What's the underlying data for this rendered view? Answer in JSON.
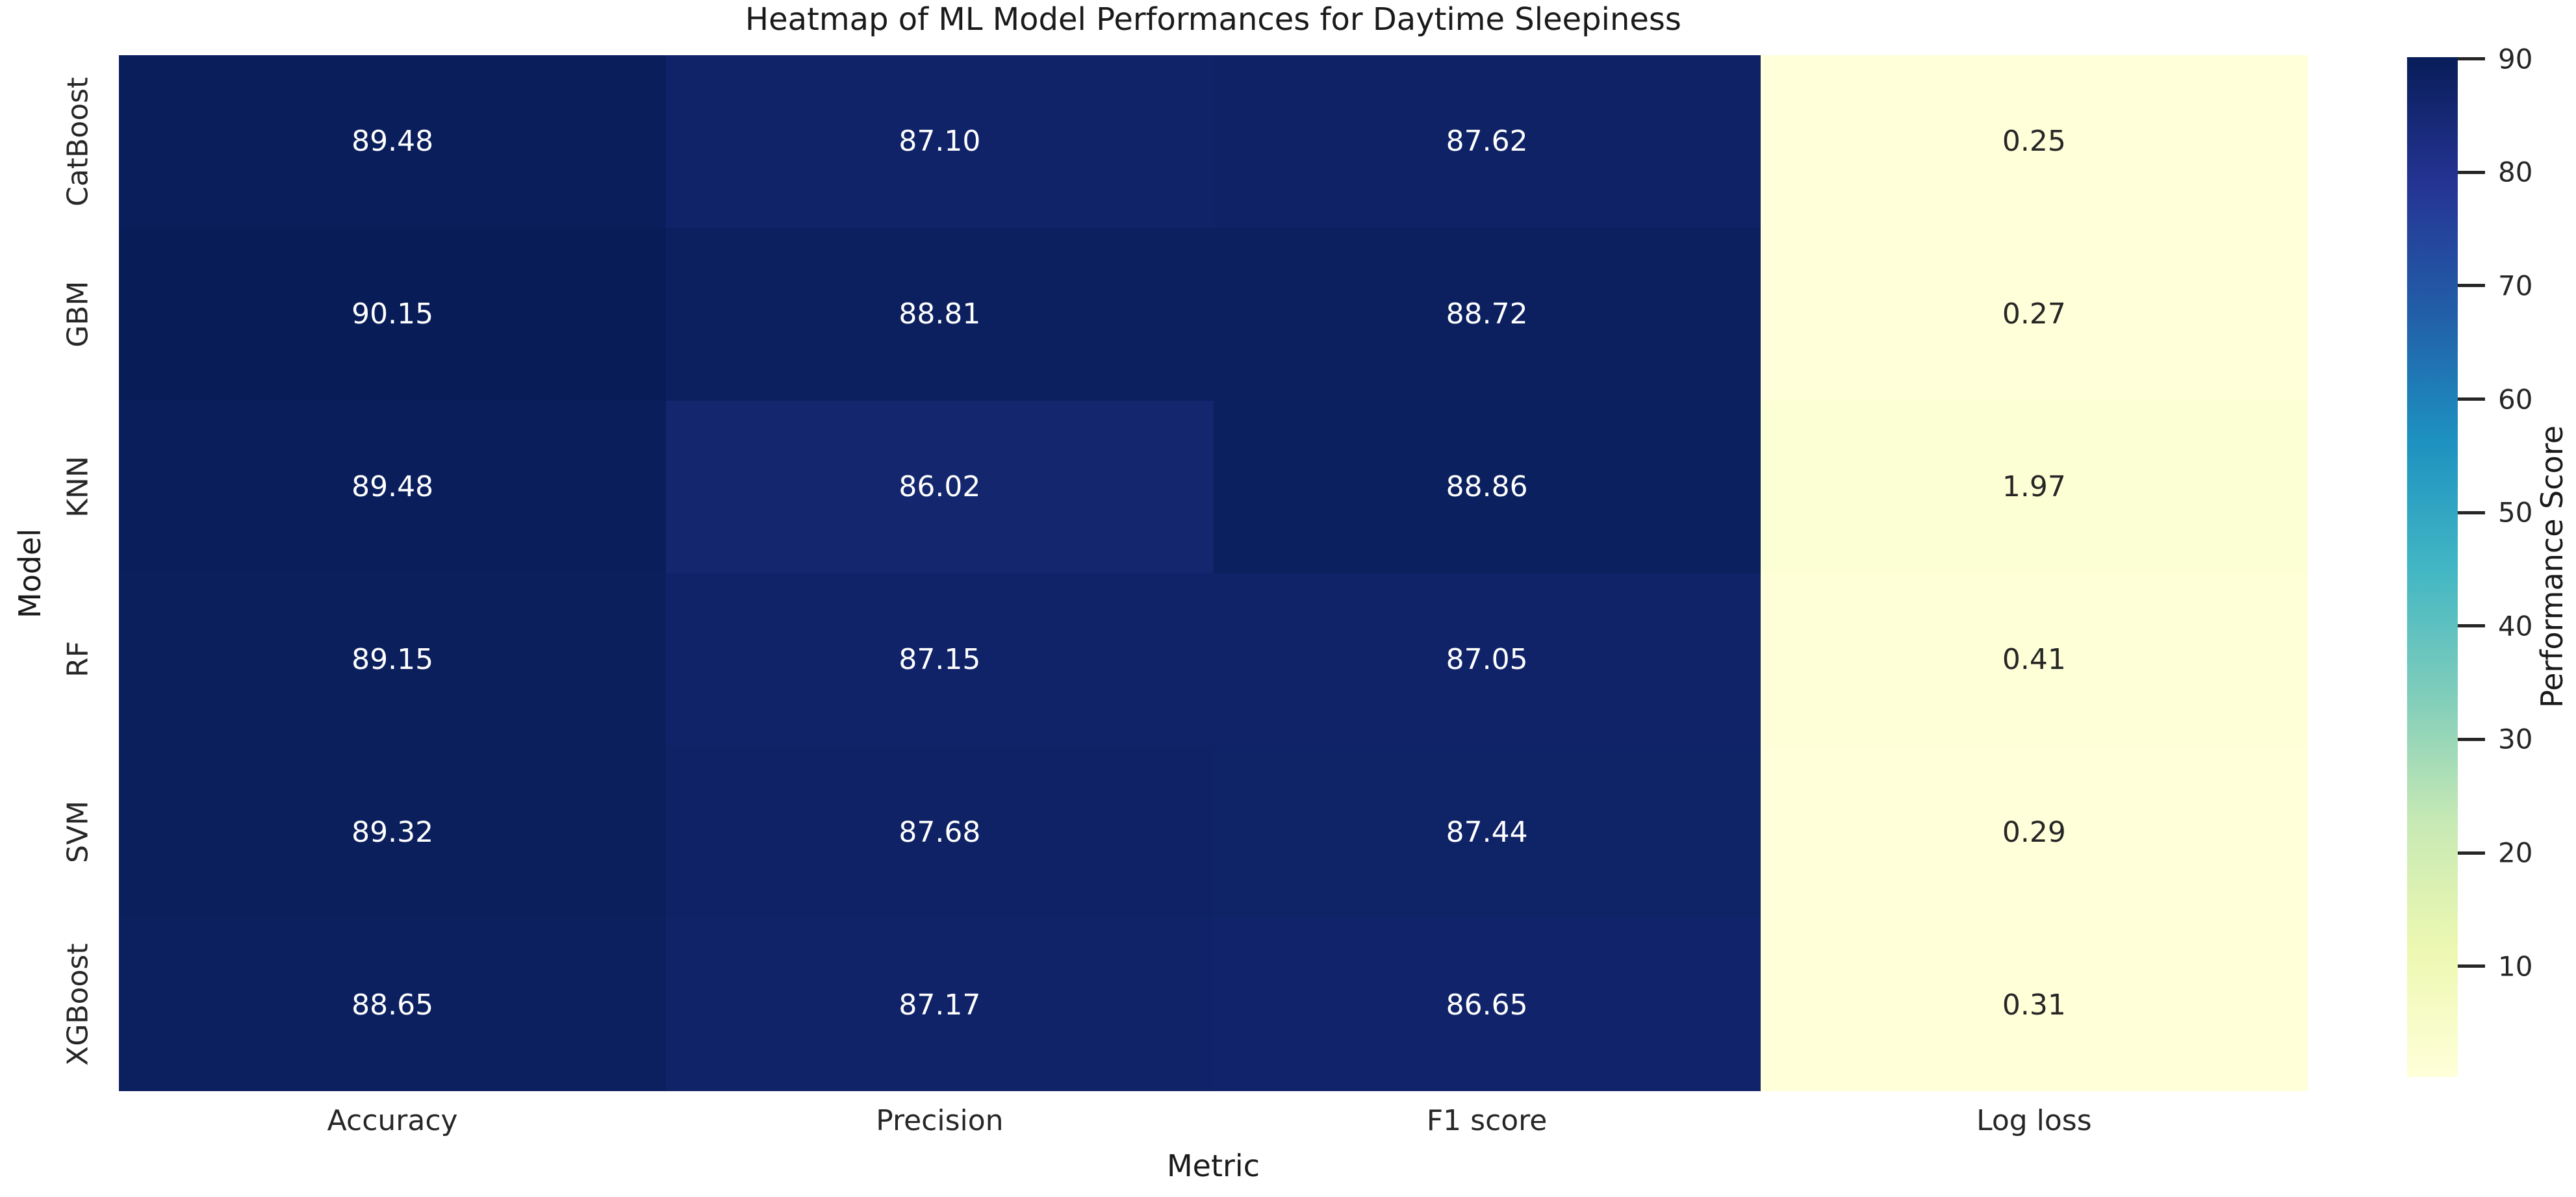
{
  "figure": {
    "background_color": "#ffffff",
    "text_color": "#1a1a1a"
  },
  "chart_data": {
    "type": "heatmap",
    "title": "Heatmap of ML Model Performances for Daytime Sleepiness",
    "xlabel": "Metric",
    "ylabel": "Model",
    "x_categories": [
      "Accuracy",
      "Precision",
      "F1 score",
      "Log loss"
    ],
    "y_categories": [
      "CatBoost",
      "GBM",
      "KNN",
      "RF",
      "SVM",
      "XGBoost"
    ],
    "values": [
      [
        89.48,
        87.1,
        87.62,
        0.25
      ],
      [
        90.15,
        88.81,
        88.72,
        0.27
      ],
      [
        89.48,
        86.02,
        88.86,
        1.97
      ],
      [
        89.15,
        87.15,
        87.05,
        0.41
      ],
      [
        89.32,
        87.68,
        87.44,
        0.29
      ],
      [
        88.65,
        87.17,
        86.65,
        0.31
      ]
    ],
    "cell_labels": [
      [
        "89.48",
        "87.10",
        "87.62",
        "0.25"
      ],
      [
        "90.15",
        "88.81",
        "88.72",
        "0.27"
      ],
      [
        "89.48",
        "86.02",
        "88.86",
        "1.97"
      ],
      [
        "89.15",
        "87.15",
        "87.05",
        "0.41"
      ],
      [
        "89.32",
        "87.68",
        "87.44",
        "0.29"
      ],
      [
        "88.65",
        "87.17",
        "86.65",
        "0.31"
      ]
    ],
    "cell_colors": [
      [
        "#0a1e5c",
        "#102368",
        "#0f2266",
        "#ffffd9"
      ],
      [
        "#081d58",
        "#0c205f",
        "#0c2060",
        "#ffffd9"
      ],
      [
        "#0a1e5c",
        "#13266e",
        "#0b205f",
        "#fcfed3"
      ],
      [
        "#0b1f5d",
        "#102368",
        "#102369",
        "#feffd7"
      ],
      [
        "#0a1f5c",
        "#0e2265",
        "#0f2367",
        "#ffffd9"
      ],
      [
        "#0c2060",
        "#102368",
        "#11246b",
        "#ffffd8"
      ]
    ],
    "cell_text_colors": [
      [
        "#ffffff",
        "#ffffff",
        "#ffffff",
        "#262626"
      ],
      [
        "#ffffff",
        "#ffffff",
        "#ffffff",
        "#262626"
      ],
      [
        "#ffffff",
        "#ffffff",
        "#ffffff",
        "#262626"
      ],
      [
        "#ffffff",
        "#ffffff",
        "#ffffff",
        "#262626"
      ],
      [
        "#ffffff",
        "#ffffff",
        "#ffffff",
        "#262626"
      ],
      [
        "#ffffff",
        "#ffffff",
        "#ffffff",
        "#262626"
      ]
    ],
    "grid": false,
    "legend_position": "right-colorbar",
    "colorbar": {
      "label": "Performance Score",
      "vmin": 0.25,
      "vmax": 90.15,
      "ticks": [
        90,
        80,
        70,
        60,
        50,
        40,
        30,
        20,
        10
      ],
      "colormap": "YlGnBu",
      "gradient_stops_top_to_bottom": [
        "#081d58",
        "#253494",
        "#225ea8",
        "#1d91c0",
        "#41b6c4",
        "#7fcdbb",
        "#c7e9b4",
        "#edf8b1",
        "#ffffd9"
      ]
    }
  }
}
